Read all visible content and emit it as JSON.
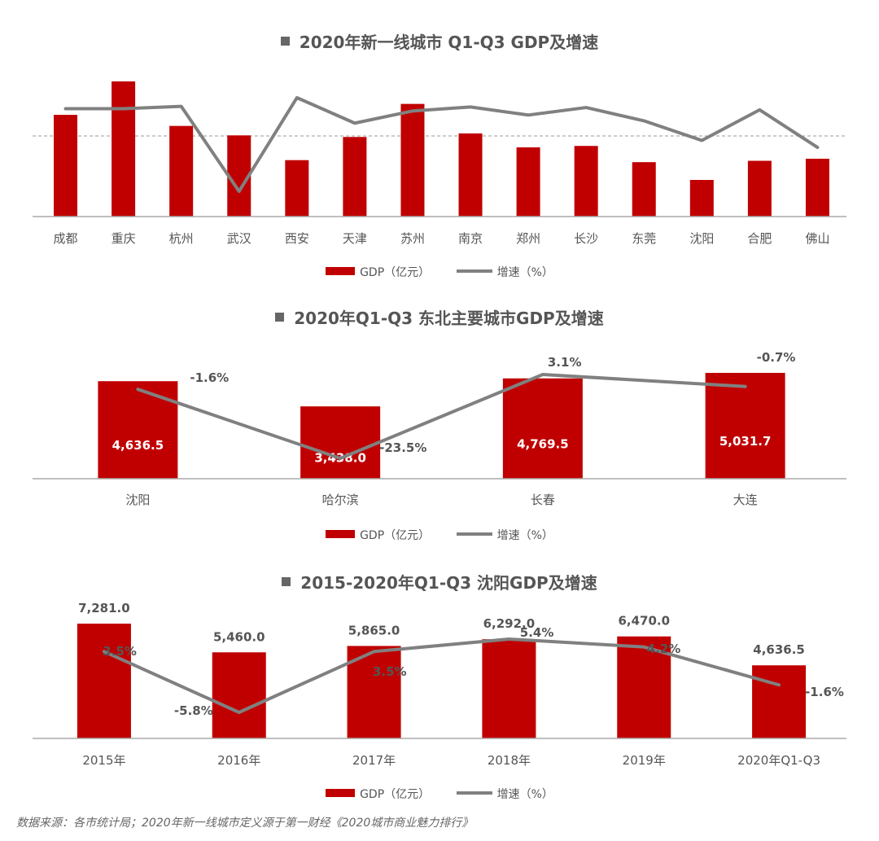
{
  "chart_data": [
    {
      "type": "bar",
      "title": "2020年新一线城市 Q1-Q3 GDP及增速",
      "categories": [
        "成都",
        "重庆",
        "杭州",
        "武汉",
        "西安",
        "天津",
        "苏州",
        "南京",
        "郑州",
        "长沙",
        "东莞",
        "沈阳",
        "合肥",
        "佛山"
      ],
      "series": [
        {
          "name": "GDP（亿元）",
          "type": "bar",
          "color": "#c00000",
          "values": [
            12869,
            17101,
            11468,
            10273,
            7140,
            10070,
            14255,
            10523,
            8756,
            8937,
            6885,
            4636.5,
            7055,
            7319
          ]
        },
        {
          "name": "增速（%）",
          "type": "line",
          "color": "#808080",
          "values": [
            3.9,
            3.9,
            4.3,
            -10.4,
            5.8,
            1.4,
            3.5,
            4.2,
            2.8,
            4.1,
            1.8,
            -1.6,
            3.7,
            -2.8
          ]
        }
      ],
      "legend": [
        "GDP（亿元）",
        "增速（%）"
      ]
    },
    {
      "type": "bar",
      "title": "2020年Q1-Q3 东北主要城市GDP及增速",
      "categories": [
        "沈阳",
        "哈尔滨",
        "长春",
        "大连"
      ],
      "series": [
        {
          "name": "GDP（亿元）",
          "type": "bar",
          "color": "#c00000",
          "values": [
            4636.5,
            3438.0,
            4769.5,
            5031.7
          ],
          "labels": [
            "4,636.5",
            "3,438.0",
            "4,769.5",
            "5,031.7"
          ]
        },
        {
          "name": "增速（%）",
          "type": "line",
          "color": "#808080",
          "values": [
            -1.6,
            -23.5,
            3.1,
            -0.7
          ],
          "labels": [
            "-1.6%",
            "-23.5%",
            "3.1%",
            "-0.7%"
          ]
        }
      ],
      "legend": [
        "GDP（亿元）",
        "增速（%）"
      ]
    },
    {
      "type": "bar",
      "title": "2015-2020年Q1-Q3 沈阳GDP及增速",
      "categories": [
        "2015年",
        "2016年",
        "2017年",
        "2018年",
        "2019年",
        "2020年Q1-Q3"
      ],
      "series": [
        {
          "name": "GDP（亿元）",
          "type": "bar",
          "color": "#c00000",
          "values": [
            7281.0,
            5460.0,
            5865.0,
            6292.0,
            6470.0,
            4636.5
          ],
          "labels": [
            "7,281.0",
            "5,460.0",
            "5,865.0",
            "6,292.0",
            "6,470.0",
            "4,636.5"
          ]
        },
        {
          "name": "增速（%）",
          "type": "line",
          "color": "#808080",
          "values": [
            3.5,
            -5.8,
            3.5,
            5.4,
            4.2,
            -1.6
          ],
          "labels": [
            "3.5%",
            "-5.8%",
            "3.5%",
            "5.4%",
            "4.2%",
            "-1.6%"
          ]
        }
      ],
      "legend": [
        "GDP（亿元）",
        "增速（%）"
      ]
    }
  ],
  "source": "数据来源：各市统计局；2020年新一线城市定义源于第一财经《2020城市商业魅力排行》"
}
